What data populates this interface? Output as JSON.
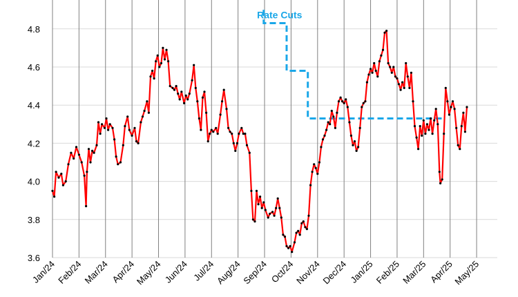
{
  "colors": {
    "series": "#ff0000",
    "markers": "#000000",
    "rate_cuts": "#1aa7e8",
    "grid_h": "#d9d9d9",
    "grid_v": "#808080"
  },
  "chart_data": {
    "type": "line",
    "title": "",
    "xlabel": "",
    "ylabel": "",
    "ylim": [
      3.6,
      4.9
    ],
    "yticks": [
      "3.6",
      "3.8",
      "4.0",
      "4.2",
      "4.4",
      "4.6",
      "4.8"
    ],
    "xticks": [
      "Jan/24",
      "Feb/24",
      "Mar/24",
      "Apr/24",
      "May/24",
      "Jun/24",
      "Jul/24",
      "Aug/24",
      "Sep/24",
      "Oct/24",
      "Nov/24",
      "Dec/24",
      "Jan/25",
      "Feb/25",
      "Mar/25",
      "Apr/25",
      "May/25"
    ],
    "grid": true,
    "series": [
      {
        "kind": "daily-yield",
        "x_start": "2024-01-02",
        "values": [
          [
            0.0,
            3.95
          ],
          [
            0.1,
            3.92
          ],
          [
            0.2,
            4.05
          ],
          [
            0.35,
            4.02
          ],
          [
            0.5,
            4.04
          ],
          [
            0.6,
            3.98
          ],
          [
            0.75,
            4.0
          ],
          [
            0.9,
            4.09
          ],
          [
            1.05,
            4.15
          ],
          [
            1.2,
            4.12
          ],
          [
            1.35,
            4.18
          ],
          [
            1.5,
            4.14
          ],
          [
            1.65,
            4.1
          ],
          [
            1.8,
            4.03
          ],
          [
            1.9,
            3.87
          ],
          [
            1.95,
            4.05
          ],
          [
            2.05,
            4.17
          ],
          [
            2.15,
            4.1
          ],
          [
            2.25,
            4.16
          ],
          [
            2.35,
            4.15
          ],
          [
            2.5,
            4.19
          ],
          [
            2.6,
            4.31
          ],
          [
            2.7,
            4.25
          ],
          [
            2.8,
            4.3
          ],
          [
            2.95,
            4.28
          ],
          [
            3.05,
            4.33
          ],
          [
            3.15,
            4.27
          ],
          [
            3.25,
            4.3
          ],
          [
            3.4,
            4.28
          ],
          [
            3.5,
            4.22
          ],
          [
            3.6,
            4.13
          ],
          [
            3.7,
            4.09
          ],
          [
            3.85,
            4.1
          ],
          [
            4.0,
            4.19
          ],
          [
            4.1,
            4.29
          ],
          [
            4.25,
            4.34
          ],
          [
            4.35,
            4.27
          ],
          [
            4.5,
            4.24
          ],
          [
            4.65,
            4.28
          ],
          [
            4.75,
            4.21
          ],
          [
            4.85,
            4.2
          ],
          [
            5.0,
            4.31
          ],
          [
            5.1,
            4.34
          ],
          [
            5.2,
            4.37
          ],
          [
            5.35,
            4.42
          ],
          [
            5.45,
            4.36
          ],
          [
            5.55,
            4.55
          ],
          [
            5.65,
            4.58
          ],
          [
            5.75,
            4.54
          ],
          [
            5.85,
            4.63
          ],
          [
            5.95,
            4.66
          ],
          [
            6.05,
            4.6
          ],
          [
            6.15,
            4.62
          ],
          [
            6.25,
            4.7
          ],
          [
            6.35,
            4.64
          ],
          [
            6.45,
            4.69
          ],
          [
            6.55,
            4.63
          ],
          [
            6.65,
            4.5
          ],
          [
            6.8,
            4.49
          ],
          [
            6.9,
            4.48
          ],
          [
            7.0,
            4.5
          ],
          [
            7.1,
            4.46
          ],
          [
            7.2,
            4.43
          ],
          [
            7.3,
            4.47
          ],
          [
            7.45,
            4.41
          ],
          [
            7.55,
            4.45
          ],
          [
            7.65,
            4.43
          ],
          [
            7.75,
            4.46
          ],
          [
            7.9,
            4.53
          ],
          [
            8.0,
            4.61
          ],
          [
            8.1,
            4.49
          ],
          [
            8.2,
            4.42
          ],
          [
            8.3,
            4.33
          ],
          [
            8.4,
            4.27
          ],
          [
            8.5,
            4.44
          ],
          [
            8.6,
            4.47
          ],
          [
            8.7,
            4.36
          ],
          [
            8.8,
            4.21
          ],
          [
            8.9,
            4.25
          ],
          [
            9.0,
            4.27
          ],
          [
            9.1,
            4.26
          ],
          [
            9.25,
            4.28
          ],
          [
            9.35,
            4.25
          ],
          [
            9.5,
            4.35
          ],
          [
            9.6,
            4.42
          ],
          [
            9.7,
            4.48
          ],
          [
            9.85,
            4.38
          ],
          [
            9.95,
            4.28
          ],
          [
            10.05,
            4.26
          ],
          [
            10.15,
            4.25
          ],
          [
            10.25,
            4.2
          ],
          [
            10.35,
            4.16
          ],
          [
            10.45,
            4.2
          ],
          [
            10.55,
            4.25
          ],
          [
            10.7,
            4.28
          ],
          [
            10.8,
            4.25
          ],
          [
            10.9,
            4.25
          ],
          [
            11.0,
            4.19
          ],
          [
            11.15,
            4.15
          ],
          [
            11.25,
            3.95
          ],
          [
            11.35,
            3.8
          ],
          [
            11.45,
            3.79
          ],
          [
            11.55,
            3.95
          ],
          [
            11.65,
            3.88
          ],
          [
            11.75,
            3.92
          ],
          [
            11.85,
            3.86
          ],
          [
            11.95,
            3.89
          ],
          [
            12.05,
            3.85
          ],
          [
            12.2,
            3.81
          ],
          [
            12.3,
            3.83
          ],
          [
            12.45,
            3.84
          ],
          [
            12.55,
            3.82
          ],
          [
            12.65,
            3.86
          ],
          [
            12.75,
            3.91
          ],
          [
            12.85,
            3.86
          ],
          [
            12.95,
            3.81
          ],
          [
            13.05,
            3.72
          ],
          [
            13.15,
            3.71
          ],
          [
            13.25,
            3.66
          ],
          [
            13.35,
            3.65
          ],
          [
            13.45,
            3.66
          ],
          [
            13.55,
            3.63
          ],
          [
            13.7,
            3.68
          ],
          [
            13.8,
            3.73
          ],
          [
            13.9,
            3.74
          ],
          [
            14.0,
            3.72
          ],
          [
            14.1,
            3.78
          ],
          [
            14.2,
            3.79
          ],
          [
            14.3,
            3.76
          ],
          [
            14.4,
            3.75
          ],
          [
            14.5,
            3.82
          ],
          [
            14.6,
            3.98
          ],
          [
            14.7,
            4.05
          ],
          [
            14.8,
            4.09
          ],
          [
            14.9,
            4.07
          ],
          [
            15.0,
            4.04
          ],
          [
            15.1,
            4.1
          ],
          [
            15.2,
            4.18
          ],
          [
            15.3,
            4.22
          ],
          [
            15.4,
            4.24
          ],
          [
            15.5,
            4.27
          ],
          [
            15.6,
            4.31
          ],
          [
            15.7,
            4.3
          ],
          [
            15.8,
            4.37
          ],
          [
            15.9,
            4.34
          ],
          [
            16.0,
            4.28
          ],
          [
            16.1,
            4.36
          ],
          [
            16.2,
            4.42
          ],
          [
            16.3,
            4.44
          ],
          [
            16.4,
            4.42
          ],
          [
            16.5,
            4.41
          ],
          [
            16.6,
            4.43
          ],
          [
            16.7,
            4.39
          ],
          [
            16.8,
            4.31
          ],
          [
            16.9,
            4.24
          ],
          [
            17.0,
            4.19
          ],
          [
            17.1,
            4.21
          ],
          [
            17.2,
            4.16
          ],
          [
            17.3,
            4.18
          ],
          [
            17.4,
            4.28
          ],
          [
            17.5,
            4.39
          ],
          [
            17.6,
            4.41
          ],
          [
            17.7,
            4.42
          ],
          [
            17.8,
            4.52
          ],
          [
            17.9,
            4.56
          ],
          [
            18.0,
            4.59
          ],
          [
            18.1,
            4.57
          ],
          [
            18.2,
            4.62
          ],
          [
            18.3,
            4.58
          ],
          [
            18.4,
            4.55
          ],
          [
            18.5,
            4.63
          ],
          [
            18.6,
            4.66
          ],
          [
            18.7,
            4.69
          ],
          [
            18.8,
            4.78
          ],
          [
            18.9,
            4.79
          ],
          [
            19.0,
            4.62
          ],
          [
            19.1,
            4.6
          ],
          [
            19.2,
            4.57
          ],
          [
            19.3,
            4.6
          ],
          [
            19.4,
            4.55
          ],
          [
            19.5,
            4.54
          ],
          [
            19.6,
            4.51
          ],
          [
            19.7,
            4.48
          ],
          [
            19.8,
            4.52
          ],
          [
            19.9,
            4.49
          ],
          [
            20.0,
            4.62
          ],
          [
            20.1,
            4.55
          ],
          [
            20.2,
            4.49
          ],
          [
            20.3,
            4.57
          ],
          [
            20.4,
            4.42
          ],
          [
            20.5,
            4.29
          ],
          [
            20.6,
            4.23
          ],
          [
            20.7,
            4.17
          ],
          [
            20.8,
            4.29
          ],
          [
            20.9,
            4.24
          ],
          [
            21.0,
            4.32
          ],
          [
            21.1,
            4.25
          ],
          [
            21.2,
            4.3
          ],
          [
            21.3,
            4.27
          ],
          [
            21.4,
            4.33
          ],
          [
            21.5,
            4.25
          ],
          [
            21.6,
            4.32
          ],
          [
            21.7,
            4.38
          ],
          [
            21.8,
            4.3
          ],
          [
            21.9,
            4.05
          ],
          [
            21.95,
            3.99
          ],
          [
            22.05,
            4.01
          ],
          [
            22.15,
            4.25
          ],
          [
            22.25,
            4.49
          ],
          [
            22.35,
            4.42
          ],
          [
            22.45,
            4.35
          ],
          [
            22.55,
            4.39
          ],
          [
            22.65,
            4.42
          ],
          [
            22.75,
            4.38
          ],
          [
            22.85,
            4.28
          ],
          [
            22.95,
            4.19
          ],
          [
            23.05,
            4.17
          ],
          [
            23.15,
            4.29
          ],
          [
            23.25,
            4.36
          ],
          [
            23.35,
            4.26
          ],
          [
            23.45,
            4.39
          ]
        ]
      },
      {
        "kind": "rate-cut-steps",
        "values": [
          [
            11.95,
            4.9
          ],
          [
            11.95,
            4.83
          ],
          [
            13.25,
            4.83
          ],
          [
            13.25,
            4.58
          ],
          [
            14.45,
            4.58
          ],
          [
            14.45,
            4.33
          ],
          [
            22.2,
            4.33
          ]
        ]
      }
    ],
    "annotations": [
      {
        "text": "Rate Cuts",
        "at": [
          12.85,
          4.855
        ],
        "color": "#1aa7e8"
      }
    ]
  }
}
